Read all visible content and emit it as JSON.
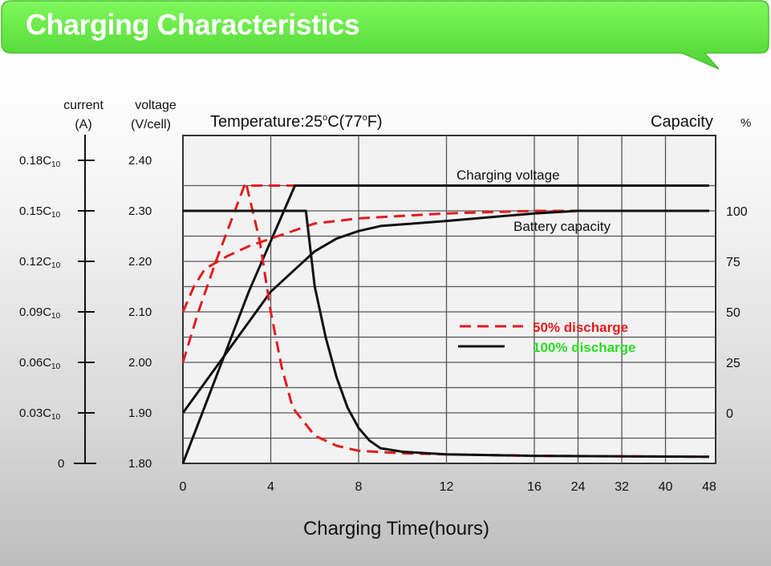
{
  "header": {
    "title": "Charging Characteristics"
  },
  "chart_data": {
    "type": "line",
    "title": "Temperature:25°C(77°F)",
    "xlabel": "Charging Time(hours)",
    "x_tick_labels": [
      "0",
      "4",
      "8",
      "12",
      "16",
      "24",
      "32",
      "40",
      "48"
    ],
    "left_axis_current": {
      "label_line1": "current",
      "label_line2": "(A)",
      "ticks": [
        {
          "mantissa": "0",
          "sub": ""
        },
        {
          "mantissa": "0.03C",
          "sub": "10"
        },
        {
          "mantissa": "0.06C",
          "sub": "10"
        },
        {
          "mantissa": "0.09C",
          "sub": "10"
        },
        {
          "mantissa": "0.12C",
          "sub": "10"
        },
        {
          "mantissa": "0.15C",
          "sub": "10"
        },
        {
          "mantissa": "0.18C",
          "sub": "10"
        }
      ]
    },
    "left_axis_voltage": {
      "label_line1": "voltage",
      "label_line2": "(V/cell)",
      "ylim": [
        1.8,
        2.4
      ],
      "ticks": [
        "1.80",
        "1.90",
        "2.00",
        "2.10",
        "2.20",
        "2.30",
        "2.40"
      ]
    },
    "right_axis_capacity": {
      "label": "Capacity",
      "unit": "%",
      "ticks": [
        {
          "label": "0",
          "voltage_equiv": 1.9
        },
        {
          "label": "25",
          "voltage_equiv": 2.0
        },
        {
          "label": "50",
          "voltage_equiv": 2.1
        },
        {
          "label": "75",
          "voltage_equiv": 2.2
        },
        {
          "label": "100",
          "voltage_equiv": 2.3
        }
      ]
    },
    "annotations": {
      "charging_voltage": "Charging voltage",
      "battery_capacity": "Battery capacity"
    },
    "legend": [
      {
        "name": "50% discharge",
        "color": "#e31c1c",
        "dash": true
      },
      {
        "name": "100% discharge",
        "color": "#2bdc23",
        "dash": false
      }
    ],
    "colors": {
      "dashed_series": "#e31c1c",
      "solid_series": "#111111",
      "banner": "#66ee44",
      "grid": "#555555",
      "plot_bg": "#f2f2f2"
    },
    "series": [
      {
        "name": "50% discharge - charging voltage",
        "style": "dashed",
        "points": [
          [
            0,
            2.0
          ],
          [
            0.7,
            2.1
          ],
          [
            1.5,
            2.2
          ],
          [
            2.8,
            2.35
          ],
          [
            48,
            2.35
          ]
        ]
      },
      {
        "name": "100% discharge - charging voltage",
        "style": "solid",
        "points": [
          [
            0,
            1.8
          ],
          [
            1.5,
            1.97
          ],
          [
            3,
            2.14
          ],
          [
            5.1,
            2.35
          ],
          [
            48,
            2.35
          ]
        ]
      },
      {
        "name": "50% discharge - capacity",
        "style": "dashed",
        "points": [
          [
            0,
            2.1
          ],
          [
            0.5,
            2.15
          ],
          [
            1,
            2.185
          ],
          [
            2,
            2.21
          ],
          [
            3,
            2.23
          ],
          [
            4,
            2.245
          ],
          [
            5,
            2.26
          ],
          [
            6,
            2.275
          ],
          [
            8,
            2.285
          ],
          [
            12,
            2.295
          ],
          [
            16,
            2.3
          ],
          [
            48,
            2.3
          ]
        ]
      },
      {
        "name": "100% discharge - capacity",
        "style": "solid",
        "points": [
          [
            0,
            1.9
          ],
          [
            2,
            2.02
          ],
          [
            4,
            2.14
          ],
          [
            6,
            2.22
          ],
          [
            7,
            2.245
          ],
          [
            8,
            2.26
          ],
          [
            9,
            2.27
          ],
          [
            12,
            2.28
          ],
          [
            16,
            2.295
          ],
          [
            24,
            2.3
          ],
          [
            48,
            2.3
          ]
        ]
      },
      {
        "name": "50% discharge - current",
        "style": "dashed",
        "points": [
          [
            2.9,
            2.35
          ],
          [
            3.5,
            2.24
          ],
          [
            4,
            2.1
          ],
          [
            4.5,
            1.99
          ],
          [
            5,
            1.91
          ],
          [
            6,
            1.855
          ],
          [
            7,
            1.835
          ],
          [
            8,
            1.825
          ],
          [
            10,
            1.82
          ],
          [
            12,
            1.818
          ],
          [
            16,
            1.815
          ],
          [
            48,
            1.813
          ]
        ]
      },
      {
        "name": "100% discharge - current",
        "style": "solid",
        "points": [
          [
            0,
            2.3
          ],
          [
            5.6,
            2.3
          ],
          [
            6,
            2.15
          ],
          [
            6.5,
            2.05
          ],
          [
            7,
            1.97
          ],
          [
            7.5,
            1.91
          ],
          [
            8,
            1.87
          ],
          [
            8.5,
            1.845
          ],
          [
            9,
            1.83
          ],
          [
            10,
            1.823
          ],
          [
            12,
            1.818
          ],
          [
            16,
            1.815
          ],
          [
            48,
            1.813
          ]
        ]
      }
    ]
  }
}
